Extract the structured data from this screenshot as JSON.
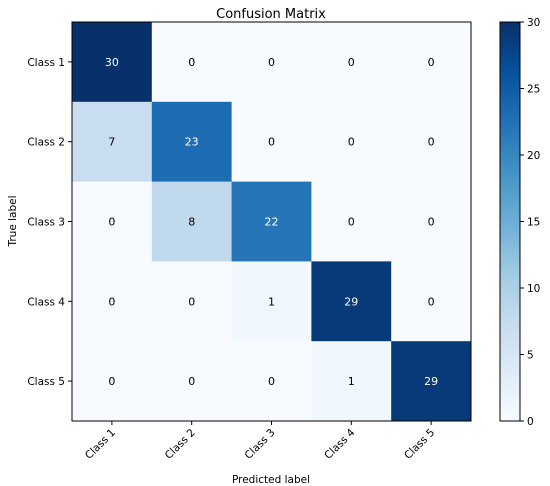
{
  "chart_data": {
    "type": "heatmap",
    "title": "Confusion Matrix",
    "xlabel": "Predicted label",
    "ylabel": "True label",
    "x_categories": [
      "Class 1",
      "Class 2",
      "Class 3",
      "Class 4",
      "Class 5"
    ],
    "y_categories": [
      "Class 1",
      "Class 2",
      "Class 3",
      "Class 4",
      "Class 5"
    ],
    "matrix": [
      [
        30,
        0,
        0,
        0,
        0
      ],
      [
        7,
        23,
        0,
        0,
        0
      ],
      [
        0,
        8,
        22,
        0,
        0
      ],
      [
        0,
        0,
        1,
        29,
        0
      ],
      [
        0,
        0,
        0,
        1,
        29
      ]
    ],
    "colorbar": {
      "range": [
        0,
        30
      ],
      "ticks": [
        0,
        5,
        10,
        15,
        20,
        25,
        30
      ]
    },
    "colormap": "Blues",
    "colors": {
      "low": "#f7fbff",
      "high": "#08306b",
      "text_dark": "#000000",
      "text_light": "#ffffff"
    },
    "grid": false
  }
}
